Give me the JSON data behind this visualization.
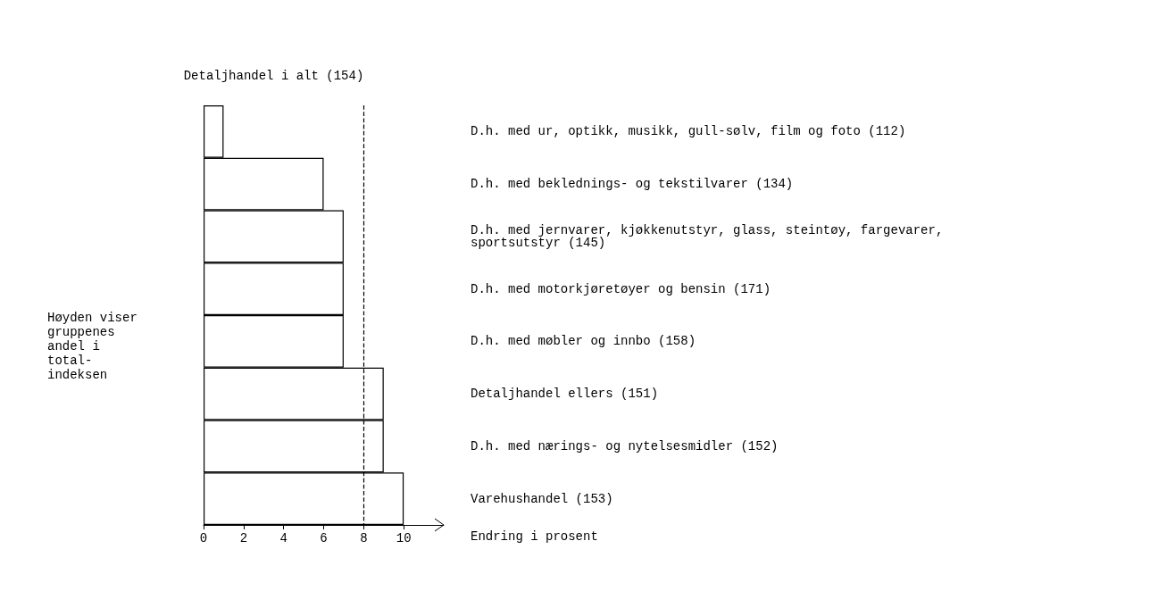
{
  "chart_data": {
    "type": "bar",
    "orientation": "horizontal",
    "categories": [
      "D.h. med ur, optikk, musikk, gull-sølv, film og foto (112)",
      "D.h. med beklednings- og tekstilvarer (134)",
      "D.h. med jernvarer, kjøkkenutstyr, glass, steintøy, fargevarer,\nsportsutstyr (145)",
      "D.h. med motorkjøretøyer og bensin (171)",
      "D.h. med møbler og innbo (158)",
      "Detaljhandel ellers (151)",
      "D.h. med nærings- og nytelsesmidler (152)",
      "Varehushandel (153)"
    ],
    "values": [
      1,
      6,
      7,
      7,
      7,
      9,
      9,
      10
    ],
    "color": "#ffffff",
    "xlabel": "Endring i prosent",
    "xlim": [
      0,
      12
    ],
    "xticks": [
      0,
      2,
      4,
      6,
      8,
      10
    ],
    "ref_lines": [
      {
        "axis": "x",
        "value": 8,
        "label": "Detaljhandel i alt (154)",
        "line_style": "dashed"
      }
    ],
    "annotations": [
      "Høyden viser\ngruppenes\nandel i\ntotal-\nindeksen"
    ],
    "grid": false
  }
}
